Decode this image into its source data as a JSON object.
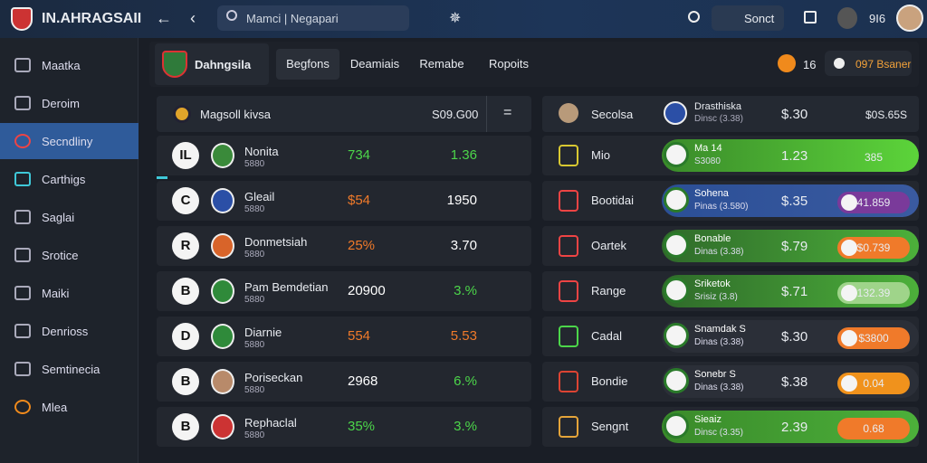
{
  "topbar": {
    "brand": "IN.AHRAGSAII",
    "search": "Mamci | Negapari",
    "button": "Sonct",
    "count": "9I6"
  },
  "sidebar": {
    "items": [
      "Maatka",
      "Deroim",
      "Secndliny",
      "Carthigs",
      "Saglai",
      "Srotice",
      "Maiki",
      "Denrioss",
      "Semtinecia",
      "Mlea"
    ]
  },
  "tabs": {
    "logo": "Dahngsila",
    "items": [
      "Begfons",
      "Deamiais",
      "Remabe",
      "Ropoits"
    ],
    "badge": "16",
    "balance": "097 Bsaner"
  },
  "left_panel": {
    "title": "Magsoll kivsa",
    "total": "S09.G00",
    "rows": [
      {
        "rank": "IL",
        "name": "Nonita",
        "sub": "5880",
        "value": "734",
        "odds": "1.36"
      },
      {
        "rank": "C",
        "name": "Gleail",
        "sub": "5880",
        "value": "$54",
        "odds": "1950"
      },
      {
        "rank": "R",
        "name": "Donmetsiah",
        "sub": "5880",
        "value": "25%",
        "odds": "3.70"
      },
      {
        "rank": "B",
        "name": "Pam Bemdetian",
        "sub": "5880",
        "value": "20900",
        "odds": "3.%"
      },
      {
        "rank": "D",
        "name": "Diarnie",
        "sub": "5880",
        "value": "554",
        "odds": "5.53"
      },
      {
        "rank": "B",
        "name": "Poriseckan",
        "sub": "5880",
        "value": "2968",
        "odds": "6.%"
      },
      {
        "rank": "B",
        "name": "Rephaclal",
        "sub": "5880",
        "value": "35%",
        "odds": "3.%"
      }
    ]
  },
  "right_panel": {
    "header": {
      "name": "Secolsa",
      "title": "Drasthiska",
      "sub": "Dinsc (3.38)",
      "price": "$.30",
      "total": "$0S.65S"
    },
    "rows": [
      {
        "name": "Mio",
        "title": "Ma 14",
        "sub": "S3080",
        "price": "1.23",
        "button": "385"
      },
      {
        "name": "Bootidai",
        "title": "Sohena",
        "sub": "Pinas (3.580)",
        "price": "$.35",
        "button": "41.859"
      },
      {
        "name": "Oartek",
        "title": "Bonable",
        "sub": "Dinas (3.38)",
        "price": "$.79",
        "button": "$0.739"
      },
      {
        "name": "Range",
        "title": "Sriketok",
        "sub": "Srisiz (3.8)",
        "price": "$.71",
        "button": "132.39"
      },
      {
        "name": "Cadal",
        "title": "Snamdak S",
        "sub": "Dinas (3.38)",
        "price": "$.30",
        "button": "$3800"
      },
      {
        "name": "Bondie",
        "title": "Sonebr S",
        "sub": "Dinas (3.38)",
        "price": "$.38",
        "button": "0.04"
      },
      {
        "name": "Sengnt",
        "title": "Sieaiz",
        "sub": "Dinsc (3.35)",
        "price": "2.39",
        "button": "0.68"
      }
    ]
  }
}
